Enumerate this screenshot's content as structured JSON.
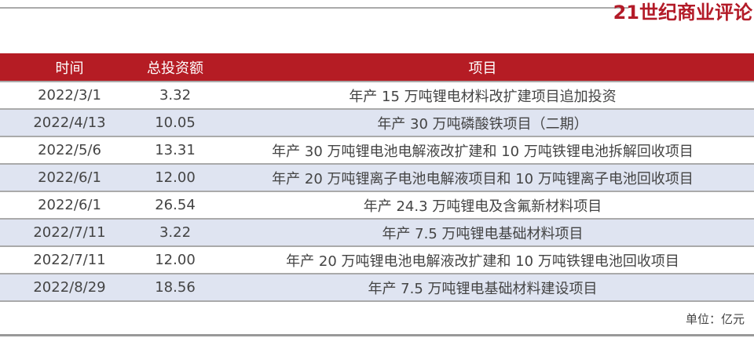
{
  "logo": "21世纪商业评论",
  "table": {
    "headers": [
      "时间",
      "总投资额",
      "项目"
    ],
    "rows": [
      [
        "2022/3/1",
        "3.32",
        "年产 15 万吨锂电材料改扩建项目追加投资"
      ],
      [
        "2022/4/13",
        "10.05",
        "年产 30 万吨磷酸铁项目（二期）"
      ],
      [
        "2022/5/6",
        "13.31",
        "年产 30 万吨锂电池电解液改扩建和 10 万吨铁锂电池拆解回收项目"
      ],
      [
        "2022/6/1",
        "12.00",
        "年产 20 万吨锂离子电池电解液项目和 10 万吨锂离子电池回收项目"
      ],
      [
        "2022/6/1",
        "26.54",
        "年产 24.3 万吨锂电及含氟新材料项目"
      ],
      [
        "2022/7/11",
        "3.22",
        "年产 7.5 万吨锂电基础材料项目"
      ],
      [
        "2022/7/11",
        "12.00",
        "年产 20 万吨锂电池电解液改扩建和 10 万吨铁锂电池回收项目"
      ],
      [
        "2022/8/29",
        "18.56",
        "年产 7.5 万吨锂电基础材料建设项目"
      ]
    ]
  },
  "unit": "单位：亿元",
  "colors": {
    "header": "#b51c24",
    "alt_row": "#dfe4f1"
  }
}
